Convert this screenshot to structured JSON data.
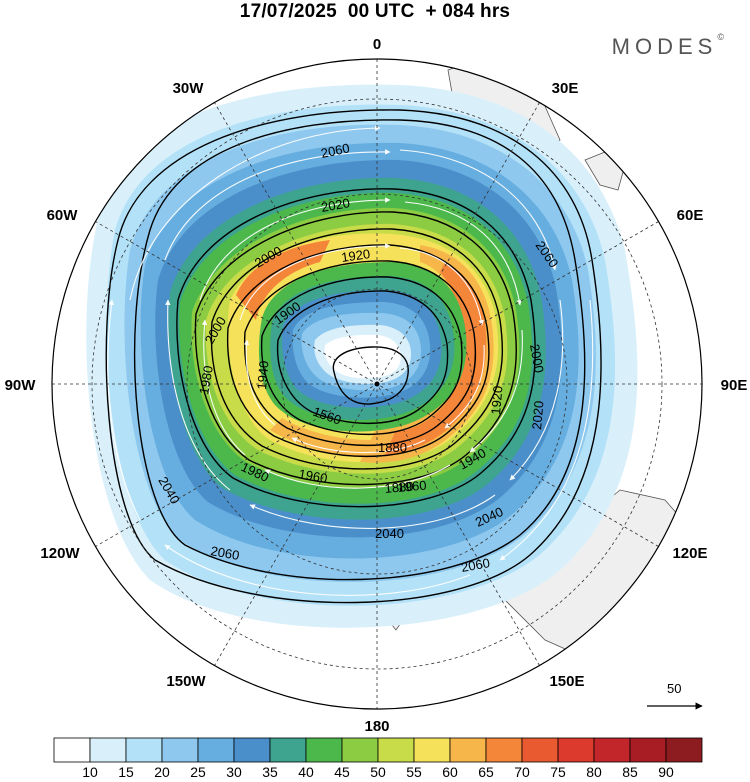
{
  "title": "17/07/2025  00 UTC  + 084 hrs",
  "brand": "MODES",
  "brand_mark": "©",
  "map": {
    "projection": "south-polar-stereographic",
    "longitude_labels": [
      {
        "name": "0",
        "angle": 0
      },
      {
        "name": "30E",
        "angle": 30
      },
      {
        "name": "60E",
        "angle": 60
      },
      {
        "name": "90E",
        "angle": 90
      },
      {
        "name": "120E",
        "angle": 120
      },
      {
        "name": "150E",
        "angle": 150
      },
      {
        "name": "180",
        "angle": 180
      },
      {
        "name": "150W",
        "angle": 210
      },
      {
        "name": "120W",
        "angle": 240
      },
      {
        "name": "90W",
        "angle": 270
      },
      {
        "name": "60W",
        "angle": 300
      },
      {
        "name": "30W",
        "angle": 330
      }
    ],
    "contour_labels": [
      "2060",
      "2020",
      "2000",
      "1920",
      "1900",
      "2000",
      "1980",
      "1940",
      "1880",
      "1920",
      "2000",
      "2020",
      "2060",
      "1980",
      "1960",
      "1560",
      "1880",
      "1940",
      "1960",
      "2040",
      "2040",
      "2040",
      "2060",
      "2060"
    ],
    "reference_vector_label": "50"
  },
  "colorbar": {
    "ticks": [
      "10",
      "15",
      "20",
      "25",
      "30",
      "35",
      "40",
      "45",
      "50",
      "55",
      "60",
      "65",
      "70",
      "75",
      "80",
      "85",
      "90"
    ],
    "colors": [
      "#ffffff",
      "#d9f0fb",
      "#b3e1f7",
      "#8ec8ee",
      "#66aee0",
      "#4a8fca",
      "#3ea38f",
      "#4cb84c",
      "#8ccc42",
      "#c8dc4a",
      "#f6e15a",
      "#f6b649",
      "#f4863a",
      "#ea5a30",
      "#dc3a2c",
      "#c2262a",
      "#a81d24",
      "#8c1c20"
    ]
  }
}
